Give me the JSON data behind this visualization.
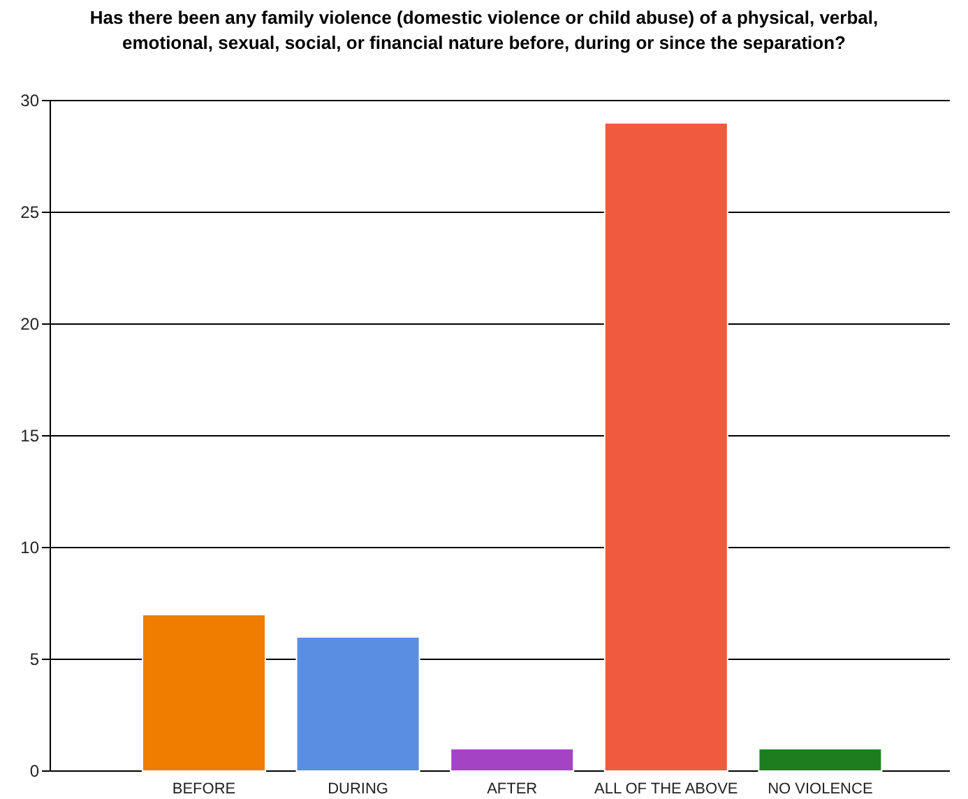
{
  "chart_data": {
    "type": "bar",
    "title": "Has there been any family violence (domestic violence or child abuse) of a physical, verbal, emotional, sexual, social, or financial nature before, during or since the separation?",
    "categories": [
      "BEFORE",
      "DURING",
      "AFTER",
      "ALL OF THE ABOVE",
      "NO VIOLENCE"
    ],
    "values": [
      7,
      6,
      1,
      29,
      1
    ],
    "colors": [
      "#f07c00",
      "#5a8ee2",
      "#a444c4",
      "#f05a3e",
      "#1e7e1e"
    ],
    "ylim": [
      0,
      30
    ],
    "yticks": [
      0,
      5,
      10,
      15,
      20,
      25,
      30
    ],
    "grid": "y"
  }
}
